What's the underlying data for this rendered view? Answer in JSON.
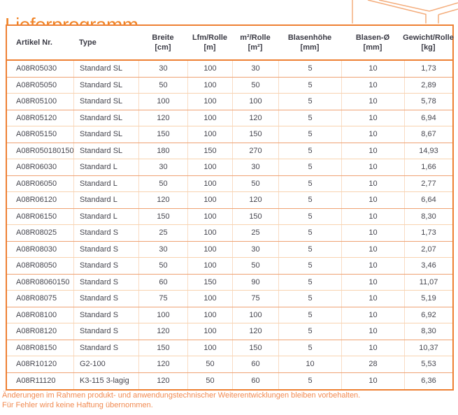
{
  "title": "Lieferprogramm",
  "colors": {
    "accent_orange": "#f08224",
    "table_border": "#ee8033",
    "row_separator_strong": "#efa273",
    "row_separator_light": "#f8d3b0",
    "column_gridline": "#f9dcc4",
    "header_text": "#3a3a44",
    "body_text": "#46464f",
    "footer_text": "#f18a51",
    "deco_line": "#f4ad7c"
  },
  "table": {
    "column_keys": [
      "artikel_nr",
      "type",
      "breite_cm",
      "lfm_rolle_m",
      "m2_rolle_m2",
      "blasenhoehe_mm",
      "blasen_durchmesser_mm",
      "gewicht_rolle_kg"
    ],
    "columns": [
      {
        "label": "Artikel Nr.",
        "unit": ""
      },
      {
        "label": "Type",
        "unit": ""
      },
      {
        "label": "Breite",
        "unit": "[cm]"
      },
      {
        "label": "Lfm/Rolle",
        "unit": "[m]"
      },
      {
        "label": "m²/Rolle",
        "unit": "[m²]"
      },
      {
        "label": "Blasenhöhe",
        "unit": "[mm]"
      },
      {
        "label": "Blasen-Ø",
        "unit": "[mm]"
      },
      {
        "label": "Gewicht/Rolle",
        "unit": "[kg]"
      }
    ],
    "rows": [
      [
        "A08R05030",
        "Standard SL",
        "30",
        "100",
        "30",
        "5",
        "10",
        "1,73"
      ],
      [
        "A08R05050",
        "Standard SL",
        "50",
        "100",
        "50",
        "5",
        "10",
        "2,89"
      ],
      [
        "A08R05100",
        "Standard SL",
        "100",
        "100",
        "100",
        "5",
        "10",
        "5,78"
      ],
      [
        "A08R05120",
        "Standard SL",
        "120",
        "100",
        "120",
        "5",
        "10",
        "6,94"
      ],
      [
        "A08R05150",
        "Standard SL",
        "150",
        "100",
        "150",
        "5",
        "10",
        "8,67"
      ],
      [
        "A08R050180150",
        "Standard SL",
        "180",
        "150",
        "270",
        "5",
        "10",
        "14,93"
      ],
      [
        "A08R06030",
        "Standard L",
        "30",
        "100",
        "30",
        "5",
        "10",
        "1,66"
      ],
      [
        "A08R06050",
        "Standard L",
        "50",
        "100",
        "50",
        "5",
        "10",
        "2,77"
      ],
      [
        "A08R06120",
        "Standard L",
        "120",
        "100",
        "120",
        "5",
        "10",
        "6,64"
      ],
      [
        "A08R06150",
        "Standard L",
        "150",
        "100",
        "150",
        "5",
        "10",
        "8,30"
      ],
      [
        "A08R08025",
        "Standard S",
        "25",
        "100",
        "25",
        "5",
        "10",
        "1,73"
      ],
      [
        "A08R08030",
        "Standard S",
        "30",
        "100",
        "30",
        "5",
        "10",
        "2,07"
      ],
      [
        "A08R08050",
        "Standard S",
        "50",
        "100",
        "50",
        "5",
        "10",
        "3,46"
      ],
      [
        "A08R08060150",
        "Standard S",
        "60",
        "150",
        "90",
        "5",
        "10",
        "11,07"
      ],
      [
        "A08R08075",
        "Standard S",
        "75",
        "100",
        "75",
        "5",
        "10",
        "5,19"
      ],
      [
        "A08R08100",
        "Standard S",
        "100",
        "100",
        "100",
        "5",
        "10",
        "6,92"
      ],
      [
        "A08R08120",
        "Standard S",
        "120",
        "100",
        "120",
        "5",
        "10",
        "8,30"
      ],
      [
        "A08R08150",
        "Standard S",
        "150",
        "100",
        "150",
        "5",
        "10",
        "10,37"
      ],
      [
        "A08R10120",
        "G2-100",
        "120",
        "50",
        "60",
        "10",
        "28",
        "5,53"
      ],
      [
        "A08R11120",
        "K3-115 3-lagig",
        "120",
        "50",
        "60",
        "5",
        "10",
        "6,36"
      ]
    ]
  },
  "footer": {
    "line1": "Änderungen im Rahmen produkt- und anwendungstechnischer Weiterentwicklungen bleiben vorbehalten.",
    "line2": "Für Fehler wird keine Haftung übernommen."
  }
}
